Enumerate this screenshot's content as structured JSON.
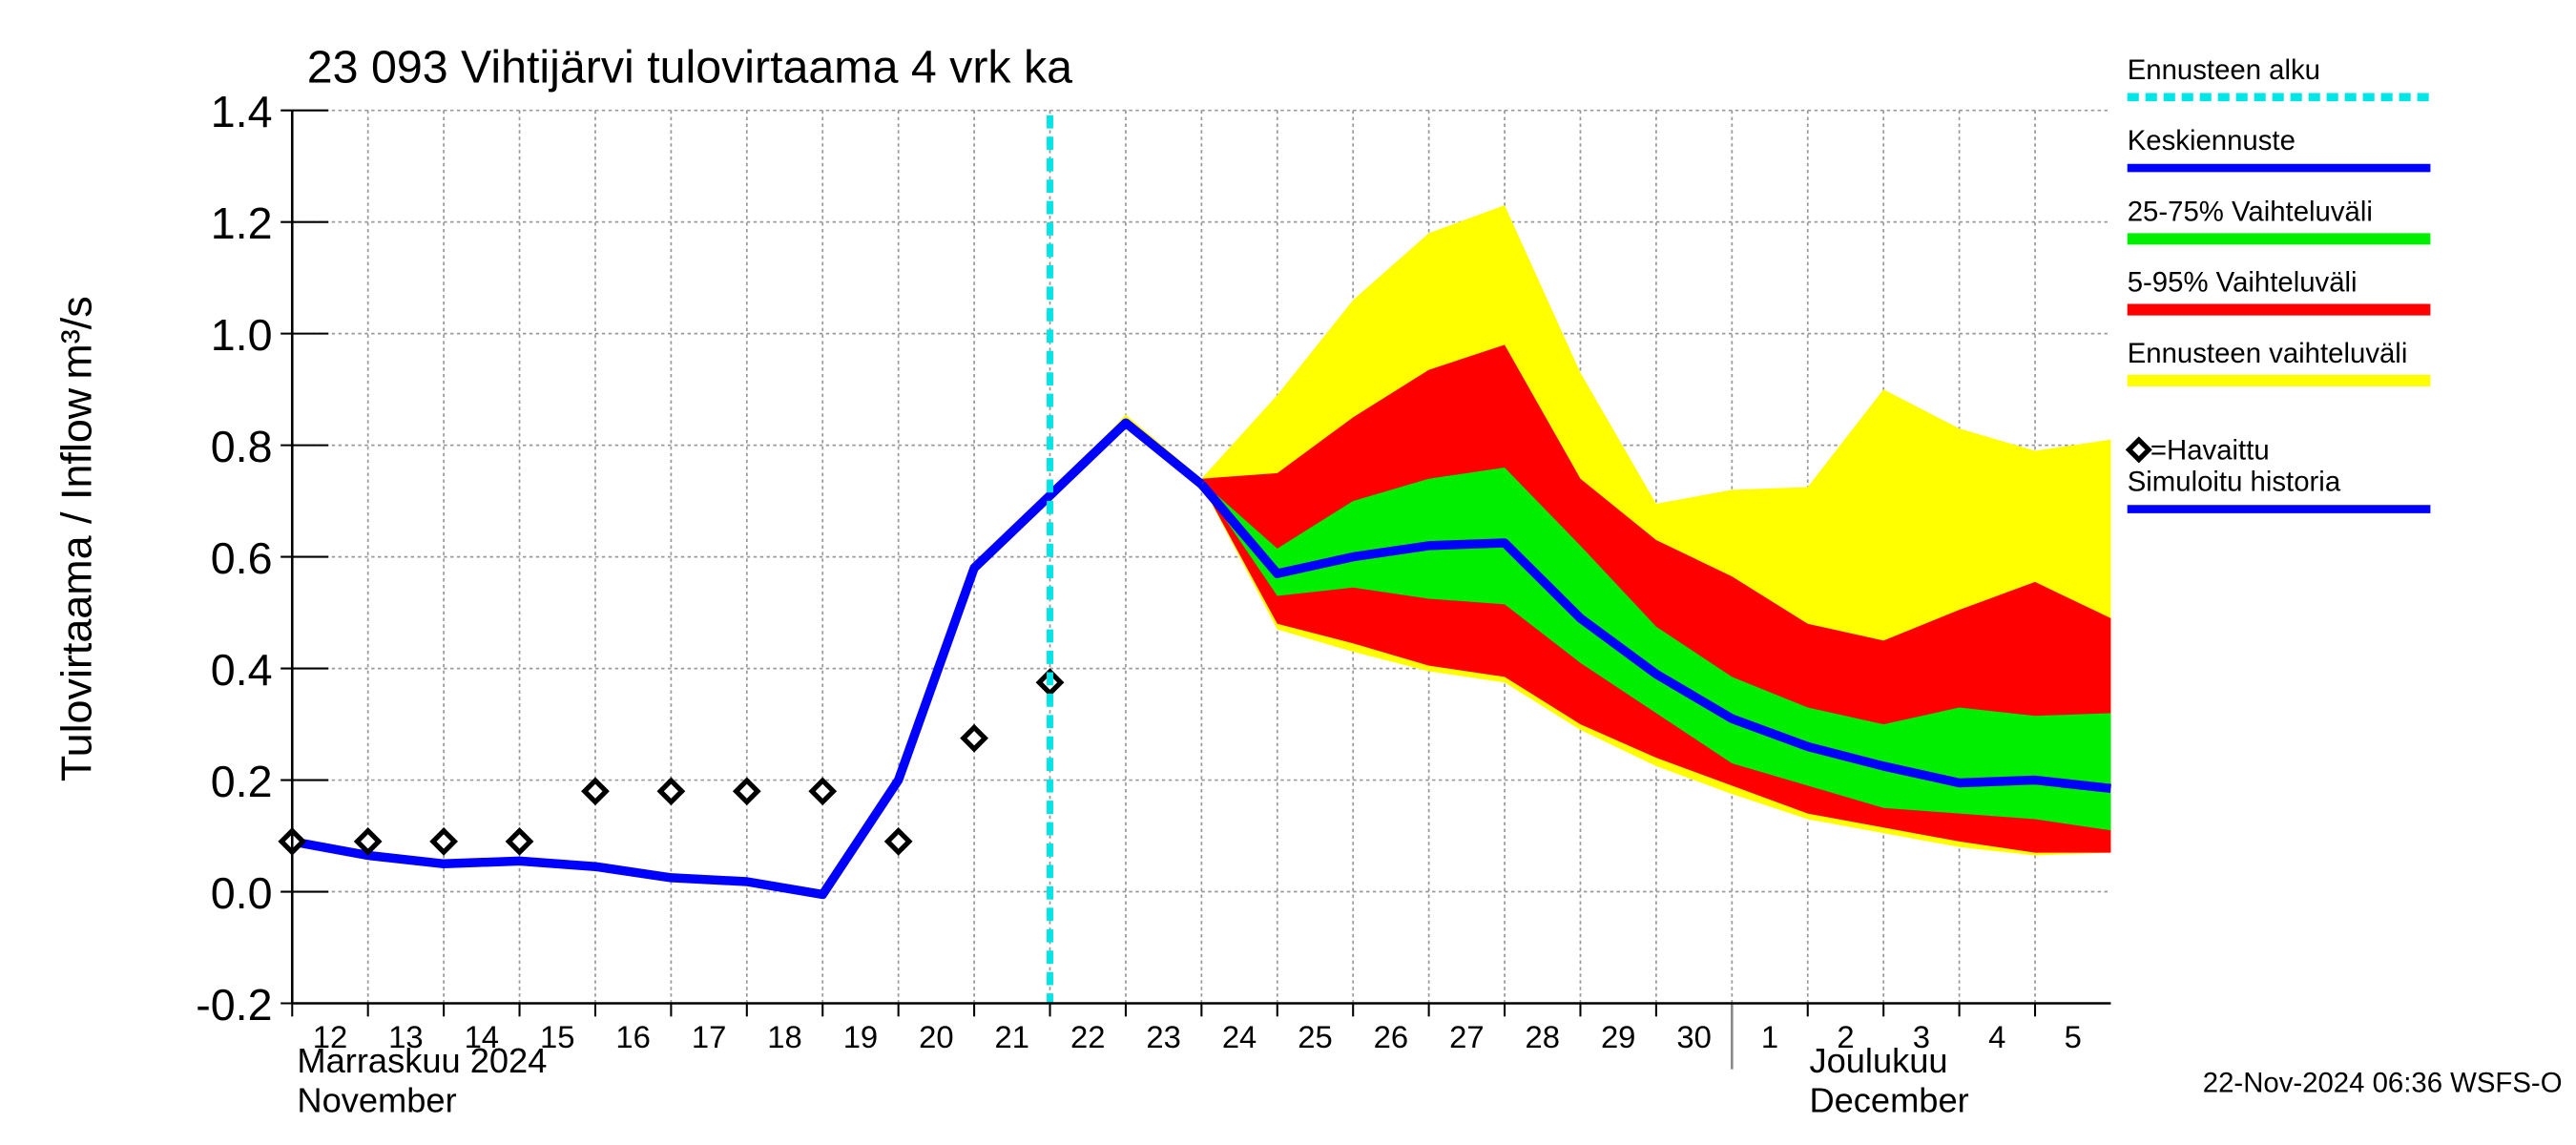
{
  "chart_data": {
    "type": "line",
    "title": "23 093 Vihtijärvi tulovirtaama 4 vrk ka",
    "ylabel": "Tulovirtaama / Inflow",
    "yunit": "m³/s",
    "footer": "22-Nov-2024 06:36 WSFS-O",
    "xlim": [
      "2024-11-12",
      "2024-12-06"
    ],
    "xticks": [
      {
        "value": "2024-11-12",
        "label": "12"
      },
      {
        "value": "2024-11-13",
        "label": "13"
      },
      {
        "value": "2024-11-14",
        "label": "14"
      },
      {
        "value": "2024-11-15",
        "label": "15"
      },
      {
        "value": "2024-11-16",
        "label": "16"
      },
      {
        "value": "2024-11-17",
        "label": "17"
      },
      {
        "value": "2024-11-18",
        "label": "18"
      },
      {
        "value": "2024-11-19",
        "label": "19"
      },
      {
        "value": "2024-11-20",
        "label": "20"
      },
      {
        "value": "2024-11-21",
        "label": "21"
      },
      {
        "value": "2024-11-22",
        "label": "22"
      },
      {
        "value": "2024-11-23",
        "label": "23"
      },
      {
        "value": "2024-11-24",
        "label": "24"
      },
      {
        "value": "2024-11-25",
        "label": "25"
      },
      {
        "value": "2024-11-26",
        "label": "26"
      },
      {
        "value": "2024-11-27",
        "label": "27"
      },
      {
        "value": "2024-11-28",
        "label": "28"
      },
      {
        "value": "2024-11-29",
        "label": "29"
      },
      {
        "value": "2024-11-30",
        "label": "30"
      },
      {
        "value": "2024-12-01",
        "label": "1"
      },
      {
        "value": "2024-12-02",
        "label": "2"
      },
      {
        "value": "2024-12-03",
        "label": "3"
      },
      {
        "value": "2024-12-04",
        "label": "4"
      },
      {
        "value": "2024-12-05",
        "label": "5"
      }
    ],
    "month_labels": [
      {
        "x": "2024-11-12",
        "lines": [
          "Marraskuu 2024",
          "November"
        ]
      },
      {
        "x": "2024-12-01",
        "lines": [
          "Joulukuu",
          "December"
        ]
      }
    ],
    "ylim": [
      -0.2,
      1.4
    ],
    "yticks": [
      -0.2,
      {
        "value": 0,
        "label": "0.0"
      },
      0.2,
      0.4,
      0.6,
      0.8,
      {
        "value": 1,
        "label": "1.0"
      },
      1.2,
      1.4
    ],
    "grid": true,
    "series": [
      {
        "name": "Ennusteen alku",
        "color": "#00e5e5",
        "x": "2024-11-22"
      },
      {
        "name": "Keskiennuste",
        "color": "#0000ff",
        "x": [
          "2024-11-24",
          "2024-11-25",
          "2024-11-26",
          "2024-11-27",
          "2024-11-28",
          "2024-11-29",
          "2024-11-30",
          "2024-12-01",
          "2024-12-02",
          "2024-12-03",
          "2024-12-04",
          "2024-12-05",
          "2024-12-06"
        ],
        "values": [
          0.73,
          0.57,
          0.6,
          0.62,
          0.625,
          0.49,
          0.39,
          0.31,
          0.26,
          0.225,
          0.195,
          0.2,
          0.185
        ]
      },
      {
        "name": "25-75% Vaihteluväli",
        "color": "#00ee00",
        "x": [
          "2024-11-24",
          "2024-11-25",
          "2024-11-26",
          "2024-11-27",
          "2024-11-28",
          "2024-11-29",
          "2024-11-30",
          "2024-12-01",
          "2024-12-02",
          "2024-12-03",
          "2024-12-04",
          "2024-12-05",
          "2024-12-06"
        ],
        "upper": [
          0.735,
          0.615,
          0.7,
          0.74,
          0.76,
          0.62,
          0.475,
          0.385,
          0.33,
          0.3,
          0.33,
          0.315,
          0.32
        ],
        "lower": [
          0.73,
          0.53,
          0.545,
          0.525,
          0.515,
          0.41,
          0.32,
          0.23,
          0.19,
          0.15,
          0.14,
          0.13,
          0.11
        ]
      },
      {
        "name": "5-95% Vaihteluväli",
        "color": "#ff0000",
        "x": [
          "2024-11-24",
          "2024-11-25",
          "2024-11-26",
          "2024-11-27",
          "2024-11-28",
          "2024-11-29",
          "2024-11-30",
          "2024-12-01",
          "2024-12-02",
          "2024-12-03",
          "2024-12-04",
          "2024-12-05",
          "2024-12-06"
        ],
        "upper": [
          0.74,
          0.75,
          0.85,
          0.935,
          0.98,
          0.74,
          0.63,
          0.565,
          0.48,
          0.45,
          0.505,
          0.555,
          0.49
        ],
        "lower": [
          0.73,
          0.48,
          0.445,
          0.405,
          0.385,
          0.3,
          0.24,
          0.19,
          0.14,
          0.115,
          0.09,
          0.07,
          0.07
        ]
      },
      {
        "name": "Ennusteen vaihteluväli",
        "color": "#ffff00",
        "x": [
          "2024-11-22",
          "2024-11-23",
          "2024-11-24",
          "2024-11-25",
          "2024-11-26",
          "2024-11-27",
          "2024-11-28",
          "2024-11-29",
          "2024-11-30",
          "2024-12-01",
          "2024-12-02",
          "2024-12-03",
          "2024-12-04",
          "2024-12-05",
          "2024-12-06"
        ],
        "upper": [
          0.71,
          0.855,
          0.74,
          0.89,
          1.06,
          1.18,
          1.23,
          0.93,
          0.695,
          0.72,
          0.725,
          0.9,
          0.83,
          0.79,
          0.81
        ],
        "lower": [
          0.71,
          0.83,
          0.73,
          0.47,
          0.43,
          0.395,
          0.375,
          0.29,
          0.225,
          0.175,
          0.13,
          0.105,
          0.08,
          0.065,
          0.07
        ]
      },
      {
        "name": "=Havaittu",
        "color": "#000000",
        "x": [
          "2024-11-12",
          "2024-11-13",
          "2024-11-14",
          "2024-11-15",
          "2024-11-16",
          "2024-11-17",
          "2024-11-18",
          "2024-11-19",
          "2024-11-20",
          "2024-11-21",
          "2024-11-22"
        ],
        "markers": [
          0.09,
          0.09,
          0.09,
          0.09,
          0.18,
          0.18,
          0.18,
          0.18,
          0.09,
          0.275,
          0.375
        ]
      },
      {
        "name": "Simuloitu historia",
        "color": "#0000ff",
        "x": [
          "2024-11-12",
          "2024-11-13",
          "2024-11-14",
          "2024-11-15",
          "2024-11-16",
          "2024-11-17",
          "2024-11-18",
          "2024-11-19",
          "2024-11-20",
          "2024-11-21",
          "2024-11-22",
          "2024-11-23",
          "2024-11-24"
        ],
        "values": [
          0.09,
          0.065,
          0.05,
          0.055,
          0.045,
          0.025,
          0.018,
          -0.005,
          0.2,
          0.58,
          0.71,
          0.84,
          0.73
        ]
      }
    ]
  }
}
